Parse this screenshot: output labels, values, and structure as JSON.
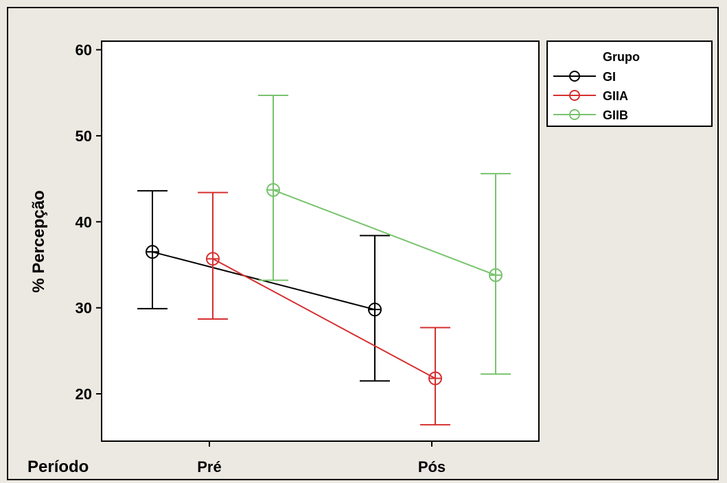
{
  "chart_data": {
    "type": "line",
    "ylabel": "%   Percepção",
    "xlabel": "Período",
    "categories": [
      "Pré",
      "Pós"
    ],
    "y_ticks": [
      20,
      30,
      40,
      50,
      60
    ],
    "ylim": [
      14.5,
      61.0
    ],
    "legend": {
      "title": "Grupo",
      "placement": "top-right outside"
    },
    "series": [
      {
        "name": "GI",
        "color": "#000000",
        "means": [
          36.5,
          29.8
        ],
        "upper": [
          43.6,
          38.4
        ],
        "lower": [
          29.9,
          21.5
        ]
      },
      {
        "name": "GIIA",
        "color": "#d62f2f",
        "means": [
          35.7,
          21.8
        ],
        "upper": [
          43.4,
          27.7
        ],
        "lower": [
          28.7,
          16.4
        ]
      },
      {
        "name": "GIIB",
        "color": "#77c36c",
        "means": [
          43.7,
          33.8
        ],
        "upper": [
          54.7,
          45.6
        ],
        "lower": [
          33.2,
          22.3
        ]
      }
    ],
    "grid": false
  }
}
